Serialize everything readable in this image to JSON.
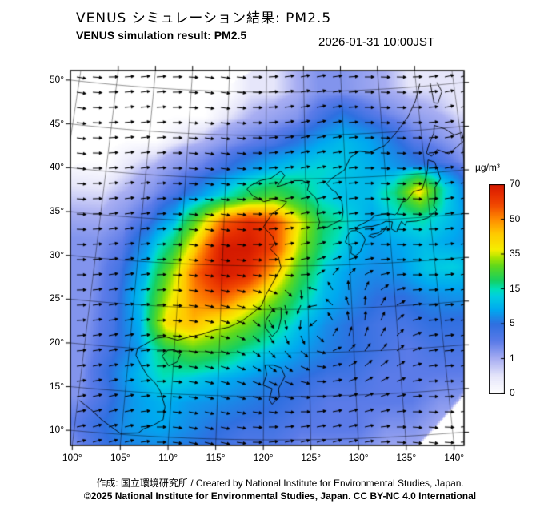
{
  "header": {
    "title_jp": "VENUS シミュレーション結果: PM2.5",
    "title_en": "VENUS simulation result: PM2.5",
    "timestamp": "2026-01-31 10:00JST"
  },
  "footer": {
    "credit": "作成: 国立環境研究所 / Created by National Institute for Environmental Studies, Japan.",
    "license": "©2025 National Institute for Environmental Studies, Japan. CC BY-NC 4.0 International"
  },
  "chart_data": {
    "type": "heatmap",
    "title": "VENUS simulation result: PM2.5",
    "variable": "PM2.5 surface concentration",
    "units": "µg/m³",
    "timestamp": "2026-01-31 10:00JST",
    "axes": {
      "lon_ticks": [
        100,
        105,
        110,
        115,
        120,
        125,
        130,
        135,
        140
      ],
      "lat_ticks": [
        50,
        45,
        40,
        35,
        30,
        25,
        20,
        15,
        10
      ],
      "degree_suffix": "°"
    },
    "colorbar": {
      "label": "µg/m³",
      "tick_values": [
        70,
        50,
        35,
        15,
        5,
        1,
        0
      ]
    },
    "colormap_stops": [
      [
        0,
        "#ffffff"
      ],
      [
        0.5,
        "#e6e6fa"
      ],
      [
        1,
        "#a8aef2"
      ],
      [
        3,
        "#5b7be8"
      ],
      [
        5,
        "#2f6fe0"
      ],
      [
        9,
        "#00a8f0"
      ],
      [
        13,
        "#00cfe0"
      ],
      [
        15,
        "#00dfb8"
      ],
      [
        20,
        "#16d060"
      ],
      [
        28,
        "#5cd81e"
      ],
      [
        33,
        "#a6e400"
      ],
      [
        37,
        "#f5ee00"
      ],
      [
        44,
        "#ffc800"
      ],
      [
        50,
        "#ff8c00"
      ],
      [
        58,
        "#f24a00"
      ],
      [
        65,
        "#e42a00"
      ],
      [
        70,
        "#d41a00"
      ]
    ],
    "projection": {
      "type": "equidistant_conic",
      "lon0": 121.5,
      "cone_n": 0.28,
      "apex_rho": 3.5236
    },
    "grid": {
      "lon_start": 100,
      "lon_step": 3,
      "lat_start": 50,
      "lat_step": -3,
      "lons": [
        100,
        103,
        106,
        109,
        112,
        115,
        118,
        121,
        124,
        127,
        130,
        133,
        136,
        139,
        142,
        145
      ],
      "lats": [
        50,
        47,
        44,
        41,
        38,
        35,
        32,
        29,
        26,
        23,
        20,
        17,
        14,
        11,
        8
      ],
      "values": [
        [
          0,
          0,
          0,
          0,
          0,
          0,
          0.5,
          0.5,
          1,
          2,
          2,
          1.5,
          1,
          0.5,
          0.5,
          0.5
        ],
        [
          0,
          0,
          0,
          0,
          0,
          0.5,
          1,
          1.5,
          2,
          4,
          6,
          4,
          2.5,
          1.5,
          1,
          0.5
        ],
        [
          0,
          0,
          0,
          0.5,
          1,
          2,
          3,
          4,
          6,
          9,
          11,
          9,
          6,
          3,
          2,
          1
        ],
        [
          0,
          0.5,
          1,
          2,
          3,
          5,
          8,
          11,
          13,
          14,
          12,
          10,
          8,
          6,
          4,
          2
        ],
        [
          0.5,
          1,
          2,
          4,
          8,
          14,
          22,
          26,
          20,
          13,
          11,
          11,
          18,
          40,
          15,
          5
        ],
        [
          1,
          2,
          4,
          10,
          30,
          55,
          65,
          60,
          38,
          20,
          14,
          9,
          13,
          16,
          12,
          7
        ],
        [
          2,
          3,
          8,
          20,
          45,
          70,
          70,
          60,
          33,
          17,
          11,
          8,
          9,
          11,
          9,
          7
        ],
        [
          2,
          4,
          10,
          30,
          55,
          70,
          65,
          45,
          24,
          12,
          8,
          7,
          8,
          12,
          13,
          10
        ],
        [
          2,
          4,
          12,
          35,
          50,
          55,
          42,
          30,
          17,
          10,
          7,
          5,
          5,
          7,
          8,
          8
        ],
        [
          2,
          4,
          10,
          40,
          45,
          35,
          28,
          18,
          11,
          7,
          5,
          4,
          4,
          5,
          5,
          4
        ],
        [
          2,
          4,
          8,
          20,
          26,
          22,
          15,
          11,
          8,
          6,
          5,
          4,
          3,
          4,
          4,
          3
        ],
        [
          2,
          5,
          10,
          15,
          13,
          10,
          8,
          6,
          5,
          4,
          4,
          3,
          3,
          3,
          3,
          3
        ],
        [
          2,
          4,
          8,
          10,
          8,
          7,
          6,
          5,
          4,
          3,
          3,
          3,
          3,
          2,
          2,
          1
        ],
        [
          3,
          5,
          8,
          9,
          7,
          5,
          4,
          4,
          3,
          3,
          3,
          2,
          2,
          1,
          1,
          0
        ],
        [
          2,
          4,
          6,
          6,
          5,
          4,
          3,
          3,
          2,
          2,
          2,
          1,
          1,
          0,
          0,
          0
        ]
      ]
    },
    "domain_mask": {
      "nw_edge": {
        "lat0": 42.5,
        "slope": 0.55,
        "lon_ref": 100
      },
      "se_edge": {
        "lat0": 9.5,
        "slope": 1.0,
        "lon_ref": 137
      },
      "fringe_deg": 1.2
    },
    "wind": {
      "base_u": 0.55,
      "base_v": 0.05,
      "lat_shear": 0.022,
      "wave_amp": 0.18,
      "wave_k": 0.28,
      "vortices": [
        {
          "lon": 127,
          "lat": 21,
          "strength": 3.2,
          "radius": 6
        }
      ]
    },
    "coastlines": {
      "asia_main": [
        [
          100.2,
          13.5
        ],
        [
          101.5,
          12.6
        ],
        [
          102.8,
          11.5
        ],
        [
          104.9,
          10.1
        ],
        [
          106.8,
          10.3
        ],
        [
          107.3,
          10.8
        ],
        [
          108.3,
          11.3
        ],
        [
          109.3,
          12
        ],
        [
          109.4,
          13.5
        ],
        [
          108.8,
          15.2
        ],
        [
          108.2,
          16.1
        ],
        [
          107.2,
          17
        ],
        [
          106.4,
          18.2
        ],
        [
          105.8,
          19.2
        ],
        [
          105.9,
          20
        ],
        [
          106.8,
          20.6
        ],
        [
          107.9,
          21.3
        ],
        [
          109,
          21.5
        ],
        [
          110.3,
          21.2
        ],
        [
          111.5,
          21.6
        ],
        [
          113,
          22
        ],
        [
          114.3,
          22.5
        ],
        [
          116,
          22.9
        ],
        [
          117.4,
          23.6
        ],
        [
          118.7,
          24.6
        ],
        [
          119.7,
          25.5
        ],
        [
          120.1,
          26.6
        ],
        [
          120.9,
          28
        ],
        [
          121.9,
          29.8
        ],
        [
          121.6,
          31
        ],
        [
          120.6,
          32
        ],
        [
          121.2,
          32.6
        ],
        [
          120.9,
          33.4
        ],
        [
          119.8,
          34.5
        ],
        [
          120.4,
          35.4
        ],
        [
          120.9,
          36.1
        ],
        [
          122.2,
          36.9
        ],
        [
          122.6,
          37.4
        ],
        [
          121.2,
          37.7
        ],
        [
          119.8,
          37.4
        ],
        [
          118.4,
          38.1
        ],
        [
          117.7,
          38.8
        ],
        [
          118.1,
          39.2
        ],
        [
          119.3,
          39.8
        ],
        [
          120.7,
          40.1
        ],
        [
          121.9,
          40.9
        ],
        [
          122.4,
          40.4
        ],
        [
          121.4,
          39.1
        ],
        [
          122.5,
          39.4
        ],
        [
          123.6,
          39.8
        ],
        [
          124.6,
          39.8
        ],
        [
          125.4,
          39.4
        ],
        [
          125.2,
          38.7
        ],
        [
          126.2,
          37.8
        ],
        [
          126.5,
          37
        ],
        [
          126.3,
          36
        ],
        [
          126.6,
          35
        ],
        [
          126.4,
          34.4
        ],
        [
          127.5,
          34.4
        ],
        [
          128.5,
          34.9
        ],
        [
          129.3,
          35.2
        ],
        [
          129.5,
          36.1
        ],
        [
          129.4,
          37.3
        ],
        [
          128.7,
          38.4
        ],
        [
          128.2,
          38.7
        ],
        [
          127.6,
          39.4
        ],
        [
          128.3,
          40
        ],
        [
          129.9,
          40.9
        ],
        [
          130.7,
          42.3
        ],
        [
          131.9,
          43
        ],
        [
          133.2,
          42.8
        ],
        [
          135.2,
          43.5
        ],
        [
          136.8,
          44.9
        ],
        [
          138.5,
          46.6
        ],
        [
          139.7,
          48.4
        ],
        [
          140.5,
          50.3
        ]
      ],
      "honshu": [
        [
          140.5,
          41.5
        ],
        [
          141.3,
          41.2
        ],
        [
          141.5,
          40.5
        ],
        [
          141.8,
          39.2
        ],
        [
          141,
          38.3
        ],
        [
          140.9,
          37.2
        ],
        [
          140.6,
          36.2
        ],
        [
          140.9,
          35.7
        ],
        [
          139.8,
          34.9
        ],
        [
          138.9,
          34.7
        ],
        [
          138.3,
          34.6
        ],
        [
          137.1,
          34.6
        ],
        [
          136.9,
          34.2
        ],
        [
          136.5,
          34.7
        ],
        [
          135.8,
          33.5
        ],
        [
          135.2,
          33.9
        ],
        [
          135.4,
          34.7
        ],
        [
          134.6,
          34.8
        ],
        [
          133.9,
          34.5
        ],
        [
          132.9,
          34.3
        ],
        [
          132.1,
          34.3
        ],
        [
          131,
          34
        ],
        [
          131.2,
          34.4
        ],
        [
          132.8,
          35.1
        ],
        [
          133.3,
          35.5
        ],
        [
          134.8,
          35.7
        ],
        [
          135.8,
          35.5
        ],
        [
          136.1,
          35.7
        ],
        [
          136.8,
          36.9
        ],
        [
          137.3,
          37
        ],
        [
          138.3,
          38
        ],
        [
          139.4,
          38.2
        ],
        [
          140,
          39.5
        ],
        [
          140.3,
          40.4
        ],
        [
          140.5,
          41.5
        ]
      ],
      "hokkaido": [
        [
          140.4,
          42.3
        ],
        [
          141,
          41.9
        ],
        [
          141.8,
          42.6
        ],
        [
          143.2,
          42
        ],
        [
          144.8,
          43
        ],
        [
          145.3,
          43.3
        ],
        [
          145.2,
          44.3
        ],
        [
          144.2,
          44.1
        ],
        [
          143.1,
          44.9
        ],
        [
          141.8,
          45.4
        ],
        [
          141.6,
          44.5
        ],
        [
          140.8,
          43.2
        ],
        [
          140.4,
          42.3
        ]
      ],
      "kyushu": [
        [
          130.4,
          33.9
        ],
        [
          131,
          33.9
        ],
        [
          131.7,
          33.4
        ],
        [
          132,
          32.8
        ],
        [
          131.3,
          31.4
        ],
        [
          130.7,
          31
        ],
        [
          130.2,
          31.3
        ],
        [
          130.3,
          32.1
        ],
        [
          129.6,
          32.6
        ],
        [
          129.9,
          33.4
        ],
        [
          130.4,
          33.9
        ]
      ],
      "shikoku": [
        [
          132.8,
          33.4
        ],
        [
          133.6,
          33.5
        ],
        [
          134.7,
          34.2
        ],
        [
          134.1,
          33.5
        ],
        [
          133,
          33
        ],
        [
          132.4,
          33.2
        ],
        [
          132.8,
          33.4
        ]
      ],
      "taiwan": [
        [
          121.9,
          25.2
        ],
        [
          121,
          25.1
        ],
        [
          120.2,
          23.8
        ],
        [
          120.1,
          22.9
        ],
        [
          120.9,
          21.9
        ],
        [
          121.6,
          22.7
        ],
        [
          121.9,
          24
        ],
        [
          121.9,
          25.2
        ]
      ],
      "hainan": [
        [
          108.7,
          19.3
        ],
        [
          109.3,
          20
        ],
        [
          110,
          20.1
        ],
        [
          110.7,
          19.6
        ],
        [
          110.4,
          18.7
        ],
        [
          109.5,
          18.2
        ],
        [
          108.7,
          19.3
        ]
      ],
      "luzon": [
        [
          120.1,
          18.6
        ],
        [
          121,
          18.6
        ],
        [
          121.9,
          18.3
        ],
        [
          122.3,
          17.3
        ],
        [
          121.6,
          15.9
        ],
        [
          121.7,
          14.9
        ],
        [
          120.9,
          14.1
        ],
        [
          120.6,
          14.6
        ],
        [
          120.9,
          15.9
        ],
        [
          119.9,
          16.3
        ],
        [
          120.3,
          17.5
        ],
        [
          120.1,
          18.6
        ]
      ],
      "sakhalin": [
        [
          141.9,
          50.3
        ],
        [
          142.1,
          48
        ],
        [
          142.6,
          47.9
        ],
        [
          143.3,
          49.2
        ],
        [
          142.8,
          50.3
        ]
      ]
    }
  }
}
